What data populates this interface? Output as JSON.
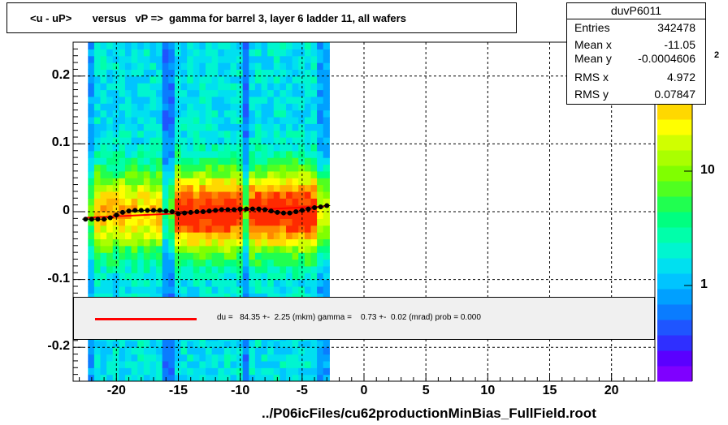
{
  "chart_data": {
    "type": "heatmap",
    "title": "<u - uP>       versus   vP =>  gamma for barrel 3, layer 6 ladder 11, all wafers",
    "xlabel": "",
    "ylabel": "",
    "xlim": [
      -23.5,
      23.5
    ],
    "ylim": [
      -0.25,
      0.25
    ],
    "x_ticks": [
      -20,
      -15,
      -10,
      -5,
      0,
      5,
      10,
      15,
      20
    ],
    "x_tick_labels": [
      "-20",
      "-15",
      "-10",
      "-5",
      "0",
      "5",
      "10",
      "15",
      "20"
    ],
    "y_ticks": [
      0.2,
      0.1,
      0,
      -0.1,
      -0.2
    ],
    "y_tick_labels": [
      "0.2",
      "0.1",
      "0",
      "-0.1",
      "-0.2"
    ],
    "z_scale": "log",
    "z_tick_labels": [
      "10",
      "1"
    ],
    "z_exponent_label": "2",
    "grid": true,
    "profile_points": {
      "x": [
        -22.5,
        -22,
        -21.5,
        -21,
        -20.5,
        -20,
        -19.5,
        -19,
        -18.5,
        -18,
        -17.5,
        -17,
        -16.5,
        -16,
        -15.5,
        -15,
        -14.5,
        -14,
        -13.5,
        -13,
        -12.5,
        -12,
        -11.5,
        -11,
        -10.5,
        -10,
        -9.5,
        -9,
        -8.5,
        -8,
        -7.5,
        -7,
        -6.5,
        -6,
        -5.5,
        -5,
        -4.5,
        -4,
        -3.5,
        -3
      ],
      "y": [
        -0.011,
        -0.011,
        -0.011,
        -0.011,
        -0.009,
        -0.005,
        -0.001,
        0.001,
        0.002,
        0.002,
        0.002,
        0.002,
        0.002,
        0.001,
        0.0,
        -0.003,
        -0.002,
        -0.001,
        0.0,
        0.0,
        0.001,
        0.002,
        0.003,
        0.003,
        0.003,
        0.004,
        0.004,
        0.004,
        0.004,
        0.003,
        0.001,
        -0.001,
        -0.002,
        -0.002,
        0.0,
        0.002,
        0.004,
        0.006,
        0.007,
        0.009
      ]
    },
    "fit_line": {
      "x": [
        -22.5,
        -3
      ],
      "y": [
        -0.009,
        0.008
      ]
    },
    "stats": {
      "name": "duvP6011",
      "rows": [
        {
          "label": "Entries",
          "value": "342478"
        },
        {
          "label": "Mean x",
          "value": "-11.05"
        },
        {
          "label": "Mean y",
          "value": "-0.0004606"
        },
        {
          "label": "RMS x",
          "value": "4.972"
        },
        {
          "label": "RMS y",
          "value": "0.07847"
        }
      ]
    },
    "legend": {
      "text": "du =   84.35 +-  2.25 (mkm) gamma =    0.73 +-  0.02 (mrad) prob = 0.000",
      "color": "#ff0000",
      "placement": "bottom-center"
    },
    "footer": "../P06icFiles/cu62productionMinBias_FullField.root",
    "palette": [
      "#7f00ff",
      "#5a00ff",
      "#2f2fff",
      "#1f55ff",
      "#0a7cff",
      "#00a0ff",
      "#00c4ff",
      "#00e0f0",
      "#00f5d0",
      "#00ffaa",
      "#00ff80",
      "#20ff50",
      "#50ff20",
      "#80ff00",
      "#aaff00",
      "#d0ff00",
      "#ffff00",
      "#ffd800",
      "#ffb000",
      "#ff8800",
      "#ff5a00",
      "#ff2a00"
    ]
  }
}
